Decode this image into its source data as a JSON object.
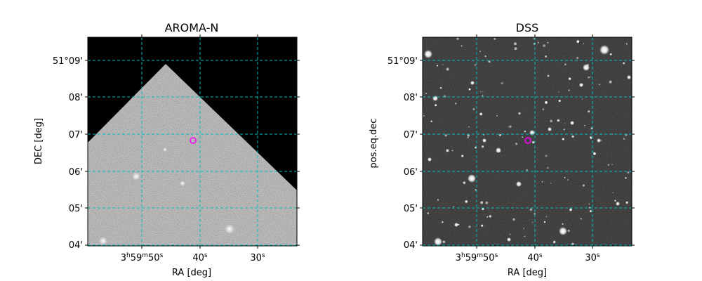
{
  "figure": {
    "background": "#ffffff",
    "grid_color": "#00bfbf",
    "marker_color": "#ff00ff",
    "marker_shape": "open-circle",
    "panels": [
      {
        "id": "aroma",
        "title": "AROMA-N",
        "xlabel": "RA [deg]",
        "ylabel": "DEC [deg]",
        "x_ticks": {
          "labels": [
            {
              "h": "3",
              "m": "59",
              "s": "50",
              "full": "3h59m50s"
            },
            {
              "s": "40",
              "full": "40s"
            },
            {
              "s": "30",
              "full": "30s"
            }
          ]
        },
        "y_ticks": [
          "51°09'",
          "08'",
          "07'",
          "06'",
          "05'",
          "04'"
        ],
        "image": {
          "description": "grey-scale survey image with partial coverage; black outside footprint",
          "coverage_fill": "#d8d8d8",
          "empty_fill": "#000000"
        },
        "grid": true,
        "grid_style": "dashed"
      },
      {
        "id": "dss",
        "title": "DSS",
        "xlabel": "RA [deg]",
        "ylabel": "pos.eq.dec",
        "x_ticks": {
          "labels": [
            {
              "h": "3",
              "m": "59",
              "s": "50",
              "full": "3h59m50s"
            },
            {
              "s": "40",
              "full": "40s"
            },
            {
              "s": "30",
              "full": "30s"
            }
          ]
        },
        "y_ticks": [
          "51°09'",
          "08'",
          "07'",
          "06'",
          "05'",
          "04'"
        ],
        "image": {
          "description": "grey-scale optical survey image with many point sources on dark sky",
          "sky_fill": "#2e2e2e",
          "star_fill": "#ffffff"
        },
        "grid": true,
        "grid_style": "dashed"
      }
    ]
  }
}
